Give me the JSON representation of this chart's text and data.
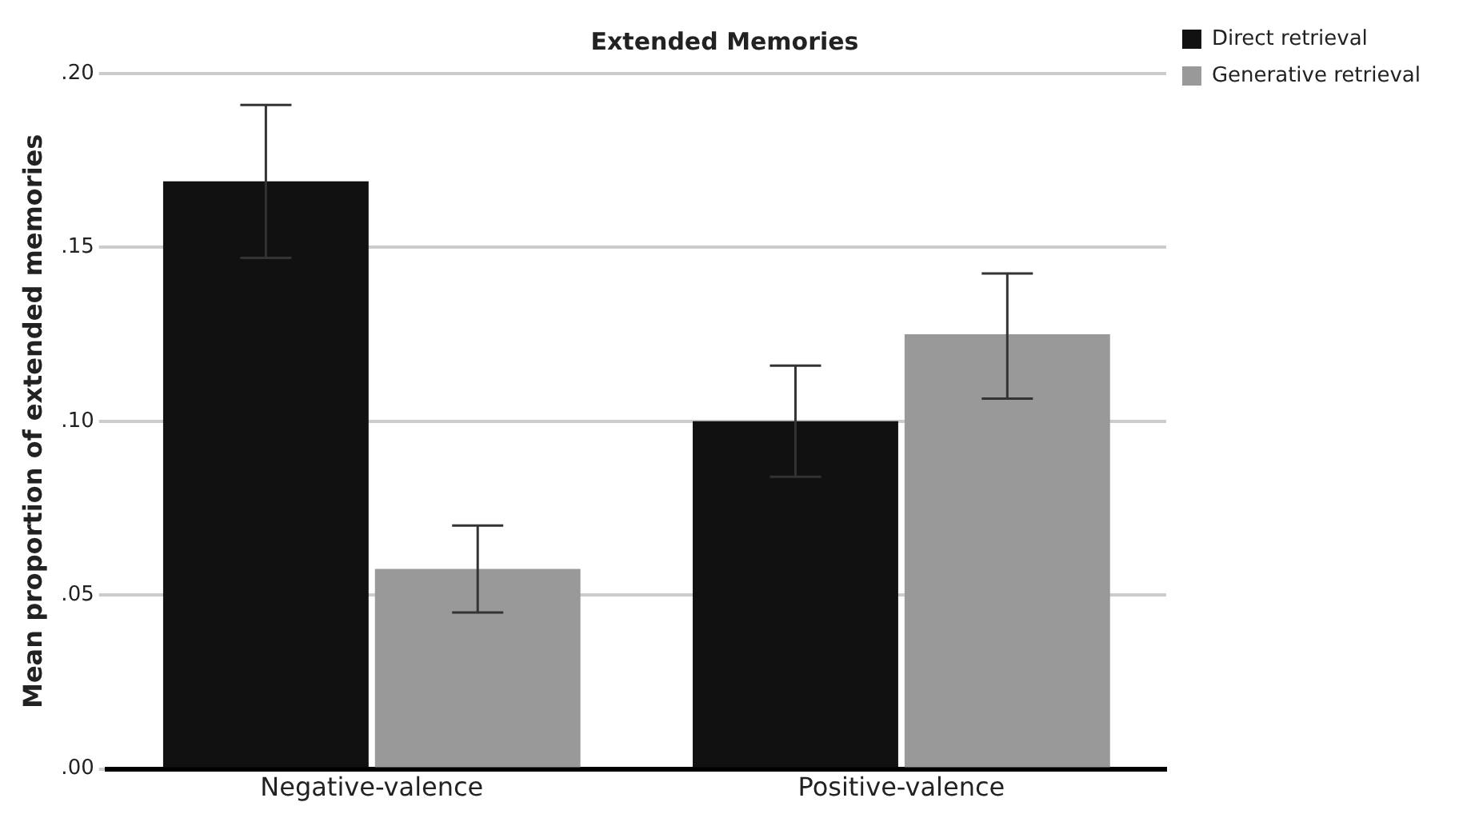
{
  "chart_data": {
    "type": "bar",
    "title": "Extended Memories",
    "ylabel": "Mean proportion of extended memories",
    "categories": [
      "Negative-valence",
      "Positive-valence"
    ],
    "series": [
      {
        "name": "Direct retrieval",
        "color": "#111111",
        "values": [
          0.169,
          0.1
        ],
        "errors": [
          [
            0.147,
            0.191
          ],
          [
            0.084,
            0.116
          ]
        ]
      },
      {
        "name": "Generative retrieval",
        "color": "#999999",
        "values": [
          0.0575,
          0.125
        ],
        "errors": [
          [
            0.045,
            0.07
          ],
          [
            0.1065,
            0.1425
          ]
        ]
      }
    ],
    "ylim": [
      0,
      0.2
    ],
    "yticks": [
      {
        "value": 0,
        "label": ".00"
      },
      {
        "value": 0.05,
        "label": ".05"
      },
      {
        "value": 0.1,
        "label": ".10"
      },
      {
        "value": 0.15,
        "label": ".15"
      },
      {
        "value": 0.2,
        "label": ".20"
      }
    ],
    "grid": "y",
    "legend": "top right"
  }
}
